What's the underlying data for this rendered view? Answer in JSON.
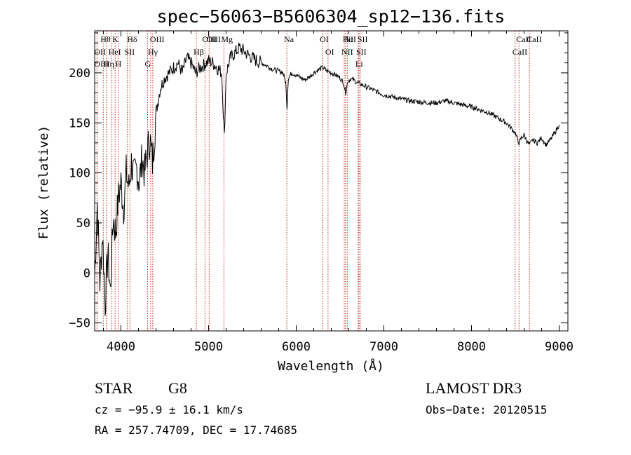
{
  "chart_data": {
    "type": "line",
    "title": "spec−56063−B5606304_sp12−136.fits",
    "xlabel": "Wavelength (Å)",
    "ylabel": "Flux (relative)",
    "xlim": [
      3700,
      9100
    ],
    "ylim": [
      -58,
      242
    ],
    "xticks": [
      4000,
      5000,
      6000,
      7000,
      8000,
      9000
    ],
    "xtick_labels": [
      "4000",
      "5000",
      "6000",
      "7000",
      "8000",
      "9000"
    ],
    "yticks": [
      -50,
      0,
      50,
      100,
      150,
      200
    ],
    "ytick_labels": [
      "−50",
      "0",
      "50",
      "100",
      "150",
      "200"
    ],
    "grid": false,
    "series": [
      {
        "name": "flux",
        "x": [
          3700,
          3730,
          3760,
          3790,
          3820,
          3850,
          3880,
          3910,
          3940,
          3970,
          4000,
          4030,
          4060,
          4090,
          4120,
          4150,
          4180,
          4210,
          4240,
          4270,
          4300,
          4330,
          4360,
          4400,
          4450,
          4500,
          4550,
          4600,
          4650,
          4700,
          4750,
          4800,
          4850,
          4900,
          4950,
          5000,
          5050,
          5100,
          5150,
          5180,
          5200,
          5250,
          5300,
          5350,
          5400,
          5450,
          5500,
          5550,
          5600,
          5650,
          5700,
          5750,
          5800,
          5850,
          5880,
          5895,
          5910,
          5950,
          6000,
          6050,
          6100,
          6150,
          6200,
          6250,
          6300,
          6350,
          6400,
          6450,
          6500,
          6540,
          6563,
          6590,
          6620,
          6650,
          6700,
          6750,
          6800,
          6850,
          6900,
          6950,
          7000,
          7100,
          7200,
          7300,
          7400,
          7500,
          7600,
          7700,
          7800,
          7900,
          8000,
          8100,
          8200,
          8300,
          8400,
          8450,
          8498,
          8530,
          8542,
          8570,
          8600,
          8630,
          8662,
          8700,
          8750,
          8800,
          8850,
          8900,
          8950,
          9000
        ],
        "y": [
          -5,
          70,
          -10,
          40,
          -30,
          20,
          -20,
          55,
          40,
          75,
          90,
          65,
          100,
          85,
          110,
          95,
          105,
          90,
          115,
          100,
          120,
          135,
          110,
          160,
          185,
          195,
          200,
          205,
          210,
          200,
          215,
          210,
          200,
          205,
          208,
          212,
          210,
          205,
          200,
          135,
          200,
          215,
          220,
          225,
          222,
          218,
          215,
          212,
          210,
          208,
          205,
          203,
          202,
          200,
          190,
          165,
          195,
          200,
          198,
          195,
          193,
          196,
          200,
          203,
          205,
          202,
          200,
          198,
          195,
          190,
          180,
          192,
          194,
          193,
          190,
          188,
          186,
          184,
          182,
          180,
          178,
          176,
          174,
          172,
          171,
          170,
          170,
          172,
          170,
          168,
          166,
          163,
          160,
          155,
          150,
          145,
          140,
          132,
          130,
          135,
          138,
          132,
          128,
          133,
          130,
          135,
          128,
          133,
          140,
          148
        ]
      }
    ],
    "lines": [
      {
        "label": "Hθ",
        "wavelength": 3798
      },
      {
        "label": "OII",
        "wavelength": 3727
      },
      {
        "label": "OIII",
        "wavelength": 3727
      },
      {
        "label": "K",
        "wavelength": 3934
      },
      {
        "label": "HeI",
        "wavelength": 3889
      },
      {
        "label": "Hη",
        "wavelength": 3835
      },
      {
        "label": "H",
        "wavelength": 3969
      },
      {
        "label": "Hδ",
        "wavelength": 4102
      },
      {
        "label": "SII",
        "wavelength": 4072
      },
      {
        "label": "OIII",
        "wavelength": 4363
      },
      {
        "label": "Hγ",
        "wavelength": 4340
      },
      {
        "label": "G",
        "wavelength": 4304
      },
      {
        "label": "OIII",
        "wavelength": 5007
      },
      {
        "label": "OIII",
        "wavelength": 4959
      },
      {
        "label": "Hβ",
        "wavelength": 4861
      },
      {
        "label": "Mg",
        "wavelength": 5175
      },
      {
        "label": "Na",
        "wavelength": 5893
      },
      {
        "label": "OI",
        "wavelength": 6300
      },
      {
        "label": "OI",
        "wavelength": 6363
      },
      {
        "label": "Hα",
        "wavelength": 6563
      },
      {
        "label": "NII",
        "wavelength": 6548
      },
      {
        "label": "NII",
        "wavelength": 6583
      },
      {
        "label": "SII",
        "wavelength": 6716
      },
      {
        "label": "SII",
        "wavelength": 6731
      },
      {
        "label": "Li",
        "wavelength": 6707
      },
      {
        "label": "CaII",
        "wavelength": 8542
      },
      {
        "label": "CaII",
        "wavelength": 8498
      },
      {
        "label": "CaII",
        "wavelength": 8662
      }
    ],
    "annotations": {
      "object_class": "STAR",
      "subclass": "G8",
      "survey": "LAMOST DR3",
      "cz": "cz = −95.9 ± 16.1 km/s",
      "obs_date": "Obs−Date: 20120515",
      "coords": "RA = 257.74709, DEC =  17.74685"
    }
  }
}
